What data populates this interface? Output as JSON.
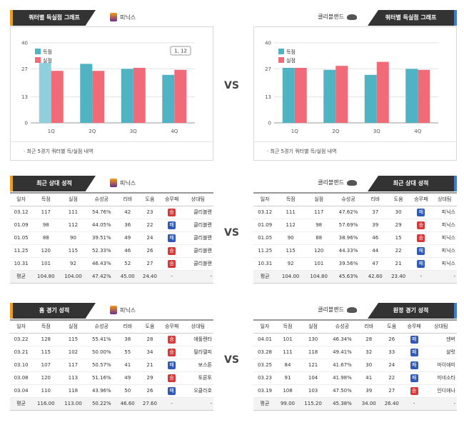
{
  "quarter_chart_title": "쿼터별 득실점 그래프",
  "left_team": "피닉스",
  "right_team": "클리블랜드",
  "vs_label": "VS",
  "left_chart": {
    "legend": [
      "득점",
      "실점"
    ],
    "yticks": [
      "40",
      "27",
      "13",
      "0"
    ],
    "tooltip": "1, 12",
    "caption": "최근 5경기 쿼터별 득/실점 내역"
  },
  "right_chart": {
    "legend": [
      "득점",
      "실점"
    ],
    "yticks": [
      "40",
      "27",
      "13",
      "0"
    ],
    "caption": "최근 5경기 쿼터별 득/실점 내역"
  },
  "chart_data": [
    {
      "type": "bar",
      "categories": [
        "1Q",
        "2Q",
        "3Q",
        "4Q"
      ],
      "ylim": [
        0,
        40
      ],
      "series": [
        {
          "name": "득점",
          "values": [
            30,
            29.5,
            27,
            24
          ]
        },
        {
          "name": "실점",
          "values": [
            26,
            26,
            27.5,
            26.5
          ]
        }
      ]
    },
    {
      "type": "bar",
      "categories": [
        "1Q",
        "2Q",
        "3Q",
        "4Q"
      ],
      "ylim": [
        0,
        40
      ],
      "series": [
        {
          "name": "득점",
          "values": [
            27.5,
            26.5,
            24,
            27
          ]
        },
        {
          "name": "실점",
          "values": [
            27.5,
            28.5,
            30.5,
            26.5
          ]
        }
      ]
    }
  ],
  "colors": {
    "scored": "#4fb3c4",
    "allowed": "#f06a78",
    "win": "#d83838",
    "loss": "#2f59b8",
    "sun_accent": "#f39c12",
    "cav_accent": "#3c7cd6"
  },
  "headers": [
    "일자",
    "득점",
    "실점",
    "슈성공",
    "리바",
    "도움",
    "승무패",
    "상대팀"
  ],
  "recent_title": "최근 상대 성적",
  "home_title": "홈 경기 성적",
  "away_title": "원정 경기 성적",
  "left_recent": {
    "rows": [
      [
        "03.12",
        "117",
        "111",
        "54.76%",
        "42",
        "23",
        "승",
        "클리블랜"
      ],
      [
        "01.09",
        "98",
        "112",
        "44.05%",
        "36",
        "22",
        "패",
        "클리블랜"
      ],
      [
        "01.05",
        "88",
        "90",
        "39.51%",
        "49",
        "24",
        "패",
        "클리블랜"
      ],
      [
        "11.25",
        "120",
        "115",
        "52.33%",
        "46",
        "26",
        "승",
        "클리블랜"
      ],
      [
        "10.31",
        "101",
        "92",
        "46.43%",
        "52",
        "27",
        "승",
        "클리블랜"
      ]
    ],
    "avg": [
      "평균",
      "104.80",
      "104.00",
      "47.42%",
      "45.00",
      "24.40",
      "-",
      "-"
    ]
  },
  "right_recent": {
    "rows": [
      [
        "03.12",
        "111",
        "117",
        "47.62%",
        "37",
        "30",
        "패",
        "피닉스"
      ],
      [
        "01.09",
        "112",
        "98",
        "57.69%",
        "39",
        "29",
        "승",
        "피닉스"
      ],
      [
        "01.05",
        "90",
        "88",
        "38.96%",
        "46",
        "15",
        "승",
        "피닉스"
      ],
      [
        "11.25",
        "115",
        "120",
        "44.33%",
        "44",
        "22",
        "패",
        "피닉스"
      ],
      [
        "10.31",
        "92",
        "101",
        "39.56%",
        "47",
        "21",
        "패",
        "피닉스"
      ]
    ],
    "avg": [
      "평균",
      "104.00",
      "104.80",
      "45.63%",
      "42.60",
      "23.40",
      "-",
      "-"
    ]
  },
  "left_home": {
    "rows": [
      [
        "03.22",
        "128",
        "115",
        "55.41%",
        "38",
        "28",
        "승",
        "애틀랜타"
      ],
      [
        "03.21",
        "115",
        "102",
        "50.00%",
        "55",
        "34",
        "승",
        "필라델피"
      ],
      [
        "03.10",
        "107",
        "117",
        "50.57%",
        "41",
        "21",
        "패",
        "보스톤"
      ],
      [
        "03.08",
        "120",
        "113",
        "51.16%",
        "49",
        "29",
        "승",
        "토론토"
      ],
      [
        "03.04",
        "110",
        "118",
        "43.96%",
        "50",
        "26",
        "패",
        "오클라호"
      ]
    ],
    "avg": [
      "평균",
      "116.00",
      "113.00",
      "50.22%",
      "46.60",
      "27.60",
      "-",
      "-"
    ]
  },
  "right_away": {
    "rows": [
      [
        "04.01",
        "101",
        "130",
        "46.34%",
        "28",
        "26",
        "패",
        "덴버"
      ],
      [
        "03.28",
        "111",
        "118",
        "49.41%",
        "32",
        "33",
        "패",
        "샬럿"
      ],
      [
        "03.25",
        "84",
        "121",
        "41.67%",
        "30",
        "24",
        "패",
        "마이애미"
      ],
      [
        "03.23",
        "91",
        "104",
        "41.98%",
        "41",
        "22",
        "패",
        "미네소타"
      ],
      [
        "03.19",
        "108",
        "103",
        "47.50%",
        "39",
        "27",
        "승",
        "인디애나"
      ]
    ],
    "avg": [
      "평균",
      "99.00",
      "115.20",
      "45.38%",
      "34.00",
      "26.40",
      "-",
      "-"
    ]
  }
}
